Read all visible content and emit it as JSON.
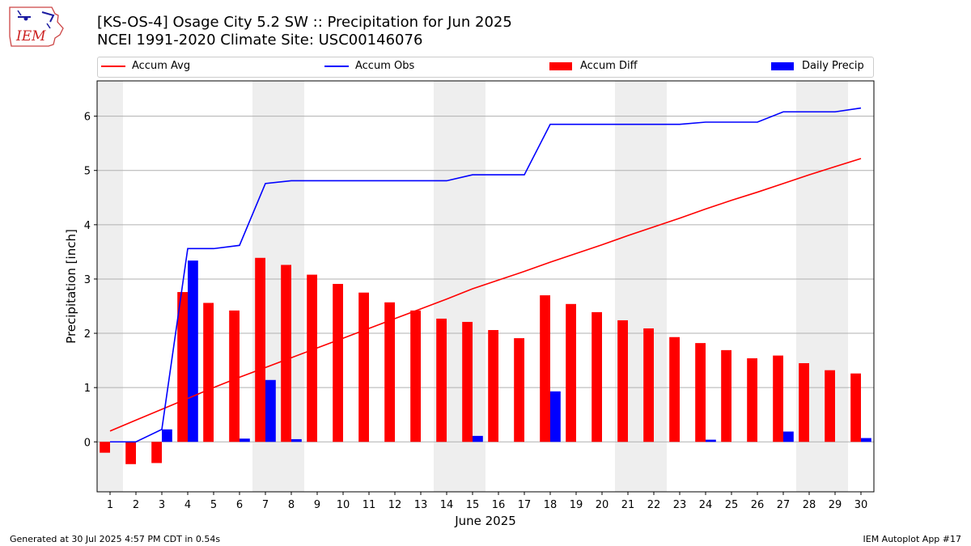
{
  "header": {
    "title_line1": "[KS-OS-4] Osage City 5.2 SW :: Precipitation for Jun 2025",
    "title_line2": "NCEI 1991-2020 Climate Site: USC00146076",
    "logo_text": "IEM"
  },
  "legend": {
    "placement": "top",
    "items": [
      {
        "label": "Accum Avg",
        "color": "#ff0000",
        "kind": "line"
      },
      {
        "label": "Accum Obs",
        "color": "#0000ff",
        "kind": "line"
      },
      {
        "label": "Accum Diff",
        "color": "#ff0000",
        "kind": "bar"
      },
      {
        "label": "Daily Precip",
        "color": "#0000ff",
        "kind": "bar"
      }
    ]
  },
  "footer": {
    "left": "Generated at 30 Jul 2025 4:57 PM CDT in 0.54s",
    "right": "IEM Autoplot App #17"
  },
  "chart_data": {
    "type": "bar",
    "xlabel": "June 2025",
    "ylabel": "Precipitation [inch]",
    "ylim": [
      -0.92,
      6.65
    ],
    "xlim": [
      0.5,
      30.5
    ],
    "grid": "horizontal",
    "x": [
      1,
      2,
      3,
      4,
      5,
      6,
      7,
      8,
      9,
      10,
      11,
      12,
      13,
      14,
      15,
      16,
      17,
      18,
      19,
      20,
      21,
      22,
      23,
      24,
      25,
      26,
      27,
      28,
      29,
      30
    ],
    "x_tick_labels": [
      "1",
      "2",
      "3",
      "4",
      "5",
      "6",
      "7",
      "8",
      "9",
      "10",
      "11",
      "12",
      "13",
      "14",
      "15",
      "16",
      "17",
      "18",
      "19",
      "20",
      "21",
      "22",
      "23",
      "24",
      "25",
      "26",
      "27",
      "28",
      "29",
      "30"
    ],
    "y_ticks": [
      0,
      1,
      2,
      3,
      4,
      5,
      6
    ],
    "y_tick_labels": [
      "0",
      "1",
      "2",
      "3",
      "4",
      "5",
      "6"
    ],
    "weekend_shading": [
      [
        0.5,
        1.5
      ],
      [
        6.5,
        8.5
      ],
      [
        13.5,
        15.5
      ],
      [
        20.5,
        22.5
      ],
      [
        27.5,
        29.5
      ]
    ],
    "series": [
      {
        "name": "Accum Avg",
        "type": "line",
        "color": "#ff0000",
        "values": [
          0.2,
          0.4,
          0.6,
          0.8,
          1.0,
          1.19,
          1.37,
          1.55,
          1.73,
          1.91,
          2.09,
          2.27,
          2.45,
          2.63,
          2.82,
          2.98,
          3.14,
          3.31,
          3.47,
          3.63,
          3.8,
          3.96,
          4.12,
          4.29,
          4.45,
          4.6,
          4.76,
          4.92,
          5.07,
          5.22
        ]
      },
      {
        "name": "Accum Obs",
        "type": "line",
        "color": "#0000ff",
        "values": [
          0.0,
          0.0,
          0.23,
          3.56,
          3.56,
          3.62,
          4.76,
          4.81,
          4.81,
          4.81,
          4.81,
          4.81,
          4.81,
          4.81,
          4.92,
          4.92,
          4.92,
          5.85,
          5.85,
          5.85,
          5.85,
          5.85,
          5.85,
          5.89,
          5.89,
          5.89,
          6.08,
          6.08,
          6.08,
          6.15
        ]
      },
      {
        "name": "Accum Diff",
        "type": "bar",
        "color": "#ff0000",
        "values": [
          -0.2,
          -0.41,
          -0.39,
          2.76,
          2.56,
          2.42,
          3.39,
          3.26,
          3.08,
          2.91,
          2.75,
          2.57,
          2.42,
          2.27,
          2.21,
          2.06,
          1.91,
          2.7,
          2.54,
          2.39,
          2.24,
          2.09,
          1.93,
          1.82,
          1.69,
          1.54,
          1.59,
          1.45,
          1.32,
          1.26
        ]
      },
      {
        "name": "Daily Precip",
        "type": "bar",
        "color": "#0000ff",
        "values": [
          0.0,
          0.0,
          0.23,
          3.34,
          0.0,
          0.06,
          1.14,
          0.05,
          0.0,
          0.0,
          0.0,
          0.0,
          0.0,
          0.0,
          0.11,
          0.0,
          0.0,
          0.93,
          0.0,
          0.0,
          0.0,
          0.0,
          0.0,
          0.04,
          0.0,
          0.0,
          0.19,
          0.0,
          0.0,
          0.07
        ]
      }
    ]
  }
}
